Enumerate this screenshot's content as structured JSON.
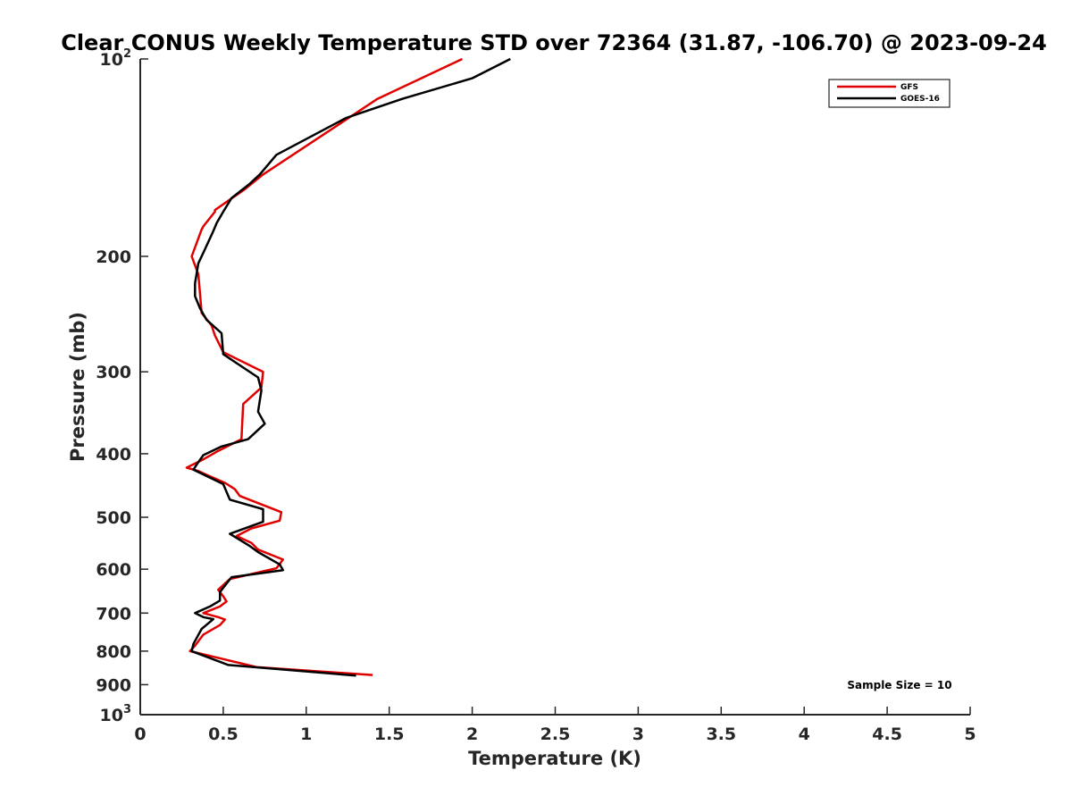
{
  "chart_data": {
    "type": "line",
    "title": "Clear CONUS Weekly Temperature STD over 72364 (31.87, -106.70) @ 2023-09-24",
    "xlabel": "Temperature (K)",
    "ylabel": "Pressure (mb)",
    "xlim": [
      0,
      5
    ],
    "ylim": [
      1000,
      100
    ],
    "y_scale": "log",
    "y_reversed": true,
    "x_ticks": [
      "0",
      "0.5",
      "1",
      "1.5",
      "2",
      "2.5",
      "3",
      "3.5",
      "4",
      "4.5",
      "5"
    ],
    "x_tick_values": [
      0,
      0.5,
      1,
      1.5,
      2,
      2.5,
      3,
      3.5,
      4,
      4.5,
      5
    ],
    "y_ticks": [
      {
        "value": 100,
        "base": "10",
        "exp": "2"
      },
      {
        "value": 200,
        "label": "200"
      },
      {
        "value": 300,
        "label": "300"
      },
      {
        "value": 400,
        "label": "400"
      },
      {
        "value": 500,
        "label": "500"
      },
      {
        "value": 600,
        "label": "600"
      },
      {
        "value": 700,
        "label": "700"
      },
      {
        "value": 800,
        "label": "800"
      },
      {
        "value": 900,
        "label": "900"
      },
      {
        "value": 1000,
        "base": "10",
        "exp": "3"
      }
    ],
    "grid": false,
    "legend_position": "top-right",
    "annotation": "Sample Size = 10",
    "series": [
      {
        "name": "GFS",
        "color": "#e00000",
        "points": [
          [
            1.94,
            100
          ],
          [
            1.43,
            115
          ],
          [
            0.74,
            150
          ],
          [
            0.63,
            158
          ],
          [
            0.45,
            170
          ],
          [
            0.45,
            171
          ],
          [
            0.38,
            180
          ],
          [
            0.37,
            182
          ],
          [
            0.31,
            200
          ],
          [
            0.35,
            213
          ],
          [
            0.36,
            228
          ],
          [
            0.37,
            244
          ],
          [
            0.43,
            255
          ],
          [
            0.45,
            264
          ],
          [
            0.5,
            280
          ],
          [
            0.74,
            300
          ],
          [
            0.73,
            317
          ],
          [
            0.62,
            336
          ],
          [
            0.61,
            380
          ],
          [
            0.47,
            396
          ],
          [
            0.38,
            408
          ],
          [
            0.28,
            420
          ],
          [
            0.35,
            425
          ],
          [
            0.42,
            433
          ],
          [
            0.51,
            443
          ],
          [
            0.57,
            453
          ],
          [
            0.6,
            464
          ],
          [
            0.85,
            491
          ],
          [
            0.84,
            506
          ],
          [
            0.67,
            520
          ],
          [
            0.58,
            534
          ],
          [
            0.67,
            547
          ],
          [
            0.71,
            560
          ],
          [
            0.86,
            580
          ],
          [
            0.82,
            598
          ],
          [
            0.54,
            621
          ],
          [
            0.47,
            645
          ],
          [
            0.5,
            660
          ],
          [
            0.52,
            672
          ],
          [
            0.48,
            684
          ],
          [
            0.38,
            700
          ],
          [
            0.47,
            710
          ],
          [
            0.51,
            716
          ],
          [
            0.48,
            730
          ],
          [
            0.38,
            755
          ],
          [
            0.33,
            785
          ],
          [
            0.3,
            800
          ],
          [
            0.7,
            846
          ],
          [
            1.4,
            870
          ]
        ]
      },
      {
        "name": "GOES-16",
        "color": "#000000",
        "points": [
          [
            2.23,
            100
          ],
          [
            2.0,
            107
          ],
          [
            1.58,
            115
          ],
          [
            1.24,
            123
          ],
          [
            0.82,
            140
          ],
          [
            0.72,
            150
          ],
          [
            0.66,
            155
          ],
          [
            0.55,
            163
          ],
          [
            0.5,
            171
          ],
          [
            0.46,
            178
          ],
          [
            0.44,
            183
          ],
          [
            0.39,
            195
          ],
          [
            0.35,
            205
          ],
          [
            0.33,
            220
          ],
          [
            0.33,
            230
          ],
          [
            0.36,
            240
          ],
          [
            0.4,
            250
          ],
          [
            0.49,
            262
          ],
          [
            0.5,
            282
          ],
          [
            0.71,
            306
          ],
          [
            0.73,
            320
          ],
          [
            0.71,
            345
          ],
          [
            0.75,
            360
          ],
          [
            0.65,
            380
          ],
          [
            0.49,
            390
          ],
          [
            0.38,
            402
          ],
          [
            0.35,
            412
          ],
          [
            0.32,
            423
          ],
          [
            0.5,
            445
          ],
          [
            0.54,
            470
          ],
          [
            0.74,
            486
          ],
          [
            0.74,
            508
          ],
          [
            0.54,
            530
          ],
          [
            0.66,
            553
          ],
          [
            0.71,
            565
          ],
          [
            0.84,
            590
          ],
          [
            0.86,
            602
          ],
          [
            0.55,
            617
          ],
          [
            0.48,
            650
          ],
          [
            0.48,
            670
          ],
          [
            0.42,
            684
          ],
          [
            0.33,
            700
          ],
          [
            0.38,
            710
          ],
          [
            0.44,
            715
          ],
          [
            0.37,
            740
          ],
          [
            0.32,
            780
          ],
          [
            0.31,
            800
          ],
          [
            0.53,
            840
          ],
          [
            1.3,
            872
          ]
        ]
      }
    ]
  }
}
